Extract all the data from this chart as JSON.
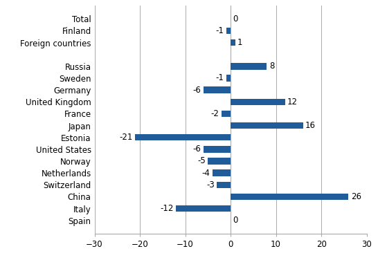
{
  "categories": [
    "Spain",
    "Italy",
    "China",
    "Switzerland",
    "Netherlands",
    "Norway",
    "United States",
    "Estonia",
    "Japan",
    "France",
    "United Kingdom",
    "Germany",
    "Sweden",
    "Russia",
    "",
    "Foreign countries",
    "Finland",
    "Total"
  ],
  "values": [
    0,
    -12,
    26,
    -3,
    -4,
    -5,
    -6,
    -21,
    16,
    -2,
    12,
    -6,
    -1,
    8,
    null,
    1,
    -1,
    0
  ],
  "bar_color": "#1F5C99",
  "xlim": [
    -30,
    30
  ],
  "xticks": [
    -30,
    -20,
    -10,
    0,
    10,
    20,
    30
  ],
  "label_fontsize": 8.5,
  "tick_fontsize": 8.5,
  "bar_height": 0.55,
  "figsize": [
    5.46,
    3.76
  ],
  "dpi": 100,
  "grid_color": "#AAAAAA",
  "spine_color": "#AAAAAA"
}
